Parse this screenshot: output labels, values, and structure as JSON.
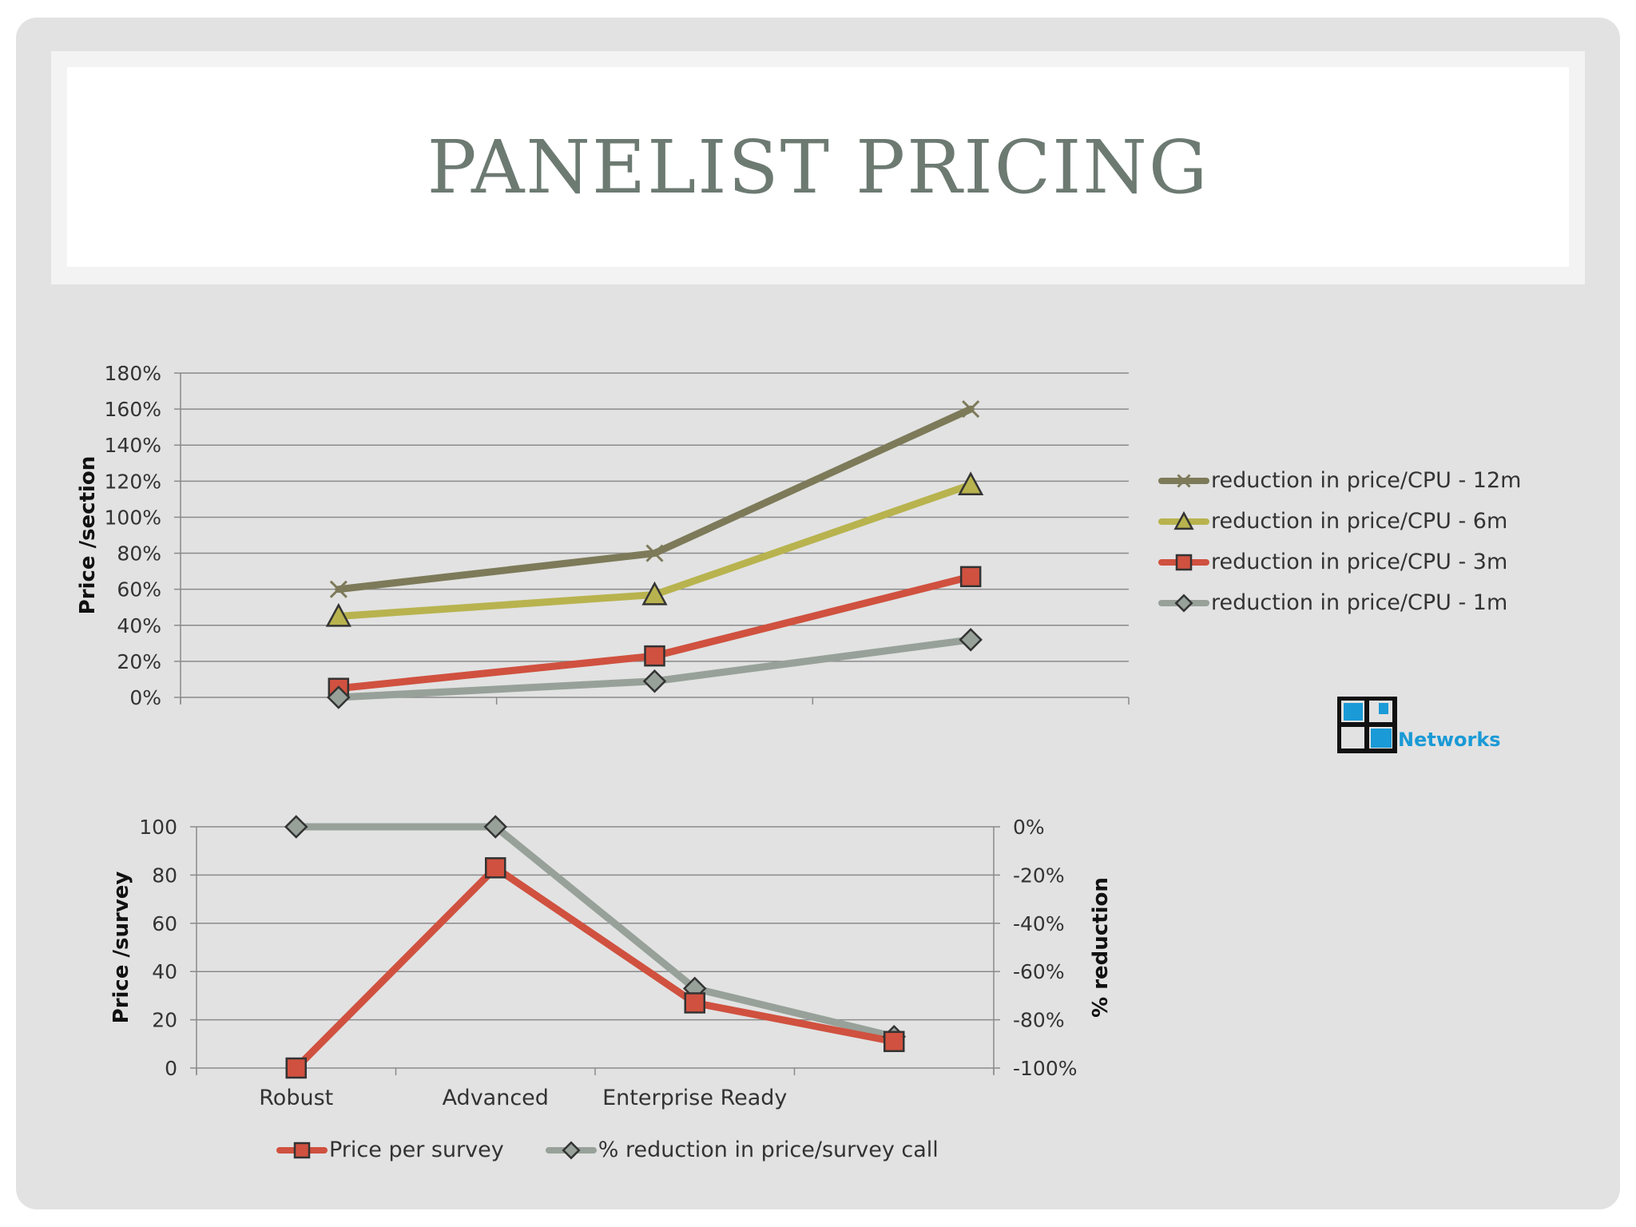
{
  "title": "PANELIST PRICING",
  "logo": {
    "text": "Networks",
    "icon": "grid-logo-icon"
  },
  "chart_data": [
    {
      "type": "line",
      "ylabel": "Price /section",
      "ylim": [
        0,
        1.8
      ],
      "y_ticks": [
        "0%",
        "20%",
        "40%",
        "60%",
        "80%",
        "100%",
        "120%",
        "140%",
        "160%",
        "180%"
      ],
      "categories": [
        "",
        "",
        ""
      ],
      "grid": true,
      "legend_position": "right",
      "series": [
        {
          "name": "reduction in price/CPU - 12m",
          "values": [
            0.6,
            0.8,
            1.6
          ],
          "color": "#7d7a5a",
          "marker": "x"
        },
        {
          "name": "reduction in price/CPU - 6m",
          "values": [
            0.45,
            0.57,
            1.18
          ],
          "color": "#b8b34e",
          "marker": "triangle"
        },
        {
          "name": "reduction in price/CPU - 3m",
          "values": [
            0.05,
            0.23,
            0.67
          ],
          "color": "#d0513f",
          "marker": "square"
        },
        {
          "name": "reduction in price/CPU - 1m",
          "values": [
            0.0,
            0.09,
            0.32
          ],
          "color": "#97a199",
          "marker": "diamond"
        }
      ]
    },
    {
      "type": "line",
      "ylabel": "Price /survey",
      "y2label": "% reduction",
      "ylim": [
        0,
        100
      ],
      "y2lim": [
        -1.0,
        0.0
      ],
      "y_ticks": [
        "0",
        "20",
        "40",
        "60",
        "80",
        "100"
      ],
      "y2_ticks": [
        "-100%",
        "-80%",
        "-60%",
        "-40%",
        "-20%",
        "0%"
      ],
      "categories": [
        "Robust",
        "Advanced",
        "Enterprise Ready",
        ""
      ],
      "grid": true,
      "legend_position": "bottom",
      "series": [
        {
          "name": "Price per survey",
          "axis": "left",
          "values": [
            0,
            83,
            27,
            11
          ],
          "color": "#d0513f",
          "marker": "square"
        },
        {
          "name": "% reduction in price/survey call",
          "axis": "right",
          "values": [
            0.0,
            0.0,
            -0.67,
            -0.87
          ],
          "color": "#97a199",
          "marker": "diamond"
        }
      ]
    }
  ]
}
